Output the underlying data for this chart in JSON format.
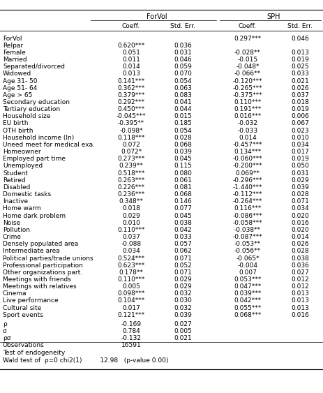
{
  "rows": [
    [
      "ForVol",
      "",
      "",
      "0.297***",
      "0.046"
    ],
    [
      "Relpar",
      "0.620***",
      "0.036",
      "",
      ""
    ],
    [
      "Female",
      "0.051",
      "0.031",
      "-0.028**",
      "0.013"
    ],
    [
      "Married",
      "0.011",
      "0.046",
      "-0.015",
      "0.019"
    ],
    [
      "Separated/divorced",
      "0.014",
      "0.059",
      "-0.048*",
      "0.025"
    ],
    [
      "Widowed",
      "0.013",
      "0.070",
      "-0.066**",
      "0.033"
    ],
    [
      "Age 31- 50",
      "0.141***",
      "0.054",
      "-0.120***",
      "0.021"
    ],
    [
      "Age 51- 64",
      "0.362***",
      "0.063",
      "-0.265***",
      "0.026"
    ],
    [
      "Age > 65",
      "0.379***",
      "0.083",
      "-0.375***",
      "0.037"
    ],
    [
      "Secondary education",
      "0.292***",
      "0.041",
      "0.110***",
      "0.018"
    ],
    [
      "Tertiary education",
      "0.450***",
      "0.044",
      "0.191***",
      "0.019"
    ],
    [
      "Household size",
      "-0.045***",
      "0.015",
      "0.016***",
      "0.006"
    ],
    [
      "EU birth",
      "-0.395**",
      "0.185",
      "-0.032",
      "0.067"
    ],
    [
      "OTH birth",
      "-0.098*",
      "0.054",
      "-0.033",
      "0.023"
    ],
    [
      "Household income (ln)",
      "0.118***",
      "0.028",
      "0.014",
      "0.010"
    ],
    [
      "Uneed meet for medical exa.",
      "0.072",
      "0.068",
      "-0.457***",
      "0.034"
    ],
    [
      "Homeowner",
      "0.072*",
      "0.039",
      "0.134***",
      "0.017"
    ],
    [
      "Employed part time",
      "0.273***",
      "0.045",
      "-0.060***",
      "0.019"
    ],
    [
      "Unemployed",
      "0.239**",
      "0.115",
      "-0.200***",
      "0.050"
    ],
    [
      "Student",
      "0.518***",
      "0.080",
      "0.069**",
      "0.031"
    ],
    [
      "Retired",
      "0.263***",
      "0.061",
      "-0.296***",
      "0.029"
    ],
    [
      "Disabled",
      "0.226***",
      "0.081",
      "-1.440***",
      "0.039"
    ],
    [
      "Domestic tasks",
      "0.236***",
      "0.068",
      "-0.112***",
      "0.028"
    ],
    [
      "Inactive",
      "0.348**",
      "0.146",
      "-0.264***",
      "0.071"
    ],
    [
      "Home warm",
      "0.018",
      "0.077",
      "0.116***",
      "0.034"
    ],
    [
      "Home dark problem",
      "0.029",
      "0.045",
      "-0.086***",
      "0.020"
    ],
    [
      "Noise",
      "0.010",
      "0.038",
      "-0.058***",
      "0.016"
    ],
    [
      "Pollution",
      "0.110***",
      "0.042",
      "-0.038**",
      "0.020"
    ],
    [
      "Crime",
      "0.037",
      "0.033",
      "-0.087***",
      "0.014"
    ],
    [
      "Densely populated area",
      "-0.088",
      "0.057",
      "-0.053**",
      "0.026"
    ],
    [
      "Intermediate area",
      "0.034",
      "0.062",
      "-0.056**",
      "0.028"
    ],
    [
      "Political parties/trade unions",
      "0.524***",
      "0.071",
      "-0.065*",
      "0.038"
    ],
    [
      "Professional participation",
      "0.623***",
      "0.052",
      "-0.004",
      "0.036"
    ],
    [
      "Other organizations part.",
      "0.178**",
      "0.071",
      "0.007",
      "0.027"
    ],
    [
      "Meetings with friends",
      "0.110***",
      "0.029",
      "0.053***",
      "0.012"
    ],
    [
      "Meetings with relatives",
      "0.005",
      "0.029",
      "0.047***",
      "0.012"
    ],
    [
      "Cinema",
      "0.098***",
      "0.032",
      "0.039***",
      "0.013"
    ],
    [
      "Live performance",
      "0.104***",
      "0.030",
      "0.042***",
      "0.013"
    ],
    [
      "Cultural site",
      "0.017",
      "0.032",
      "0.055***",
      "0.013"
    ],
    [
      "Sport events",
      "0.121***",
      "0.039",
      "0.068***",
      "0.016"
    ],
    [
      "ρ",
      "-0.169",
      "0.027",
      "",
      ""
    ],
    [
      "σ",
      "0.784",
      "0.005",
      "",
      ""
    ],
    [
      "ρσ",
      "-0.132",
      "0.021",
      "",
      ""
    ],
    [
      "Observations",
      "16591",
      "",
      "",
      ""
    ]
  ],
  "footer1": "Test of endogeneity",
  "footer2": "Wald test of  ρ=0 chi2(1)         12.98   (p-value 0.00)",
  "bg": "#ffffff",
  "fs": 6.5
}
